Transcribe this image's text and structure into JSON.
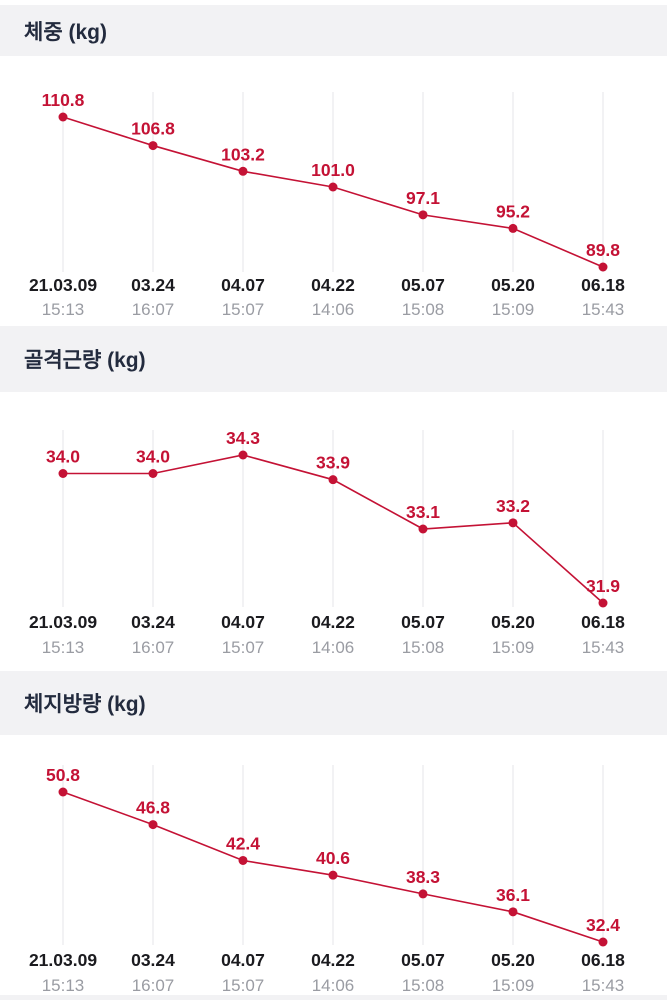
{
  "colors": {
    "accent_red": "#c41235",
    "section_title": "#232b3e",
    "date_label": "#1b1b1f",
    "time_label": "#9a9ca3",
    "gridline": "#ededf0",
    "header_band_bg": "#f2f2f4",
    "chart_bg": "#ffffff"
  },
  "chart_data": [
    {
      "type": "line",
      "title": "체중 (kg)",
      "categories": [
        "21.03.09",
        "03.24",
        "04.07",
        "04.22",
        "05.07",
        "05.20",
        "06.18"
      ],
      "category_times": [
        "15:13",
        "16:07",
        "15:07",
        "14:06",
        "15:08",
        "15:09",
        "15:43"
      ],
      "values": [
        110.8,
        106.8,
        103.2,
        101.0,
        97.1,
        95.2,
        89.8
      ],
      "ylim": [
        89.8,
        110.8
      ],
      "grid": "vertical-only",
      "legend": "none",
      "point_labels": true
    },
    {
      "type": "line",
      "title": "골격근량 (kg)",
      "categories": [
        "21.03.09",
        "03.24",
        "04.07",
        "04.22",
        "05.07",
        "05.20",
        "06.18"
      ],
      "category_times": [
        "15:13",
        "16:07",
        "15:07",
        "14:06",
        "15:08",
        "15:09",
        "15:43"
      ],
      "values": [
        34.0,
        34.0,
        34.3,
        33.9,
        33.1,
        33.2,
        31.9
      ],
      "ylim": [
        31.9,
        34.3
      ],
      "grid": "vertical-only",
      "legend": "none",
      "point_labels": true
    },
    {
      "type": "line",
      "title": "체지방량 (kg)",
      "categories": [
        "21.03.09",
        "03.24",
        "04.07",
        "04.22",
        "05.07",
        "05.20",
        "06.18"
      ],
      "category_times": [
        "15:13",
        "16:07",
        "15:07",
        "14:06",
        "15:08",
        "15:09",
        "15:43"
      ],
      "values": [
        50.8,
        46.8,
        42.4,
        40.6,
        38.3,
        36.1,
        32.4
      ],
      "ylim": [
        32.4,
        50.8
      ],
      "grid": "vertical-only",
      "legend": "none",
      "point_labels": true
    }
  ]
}
